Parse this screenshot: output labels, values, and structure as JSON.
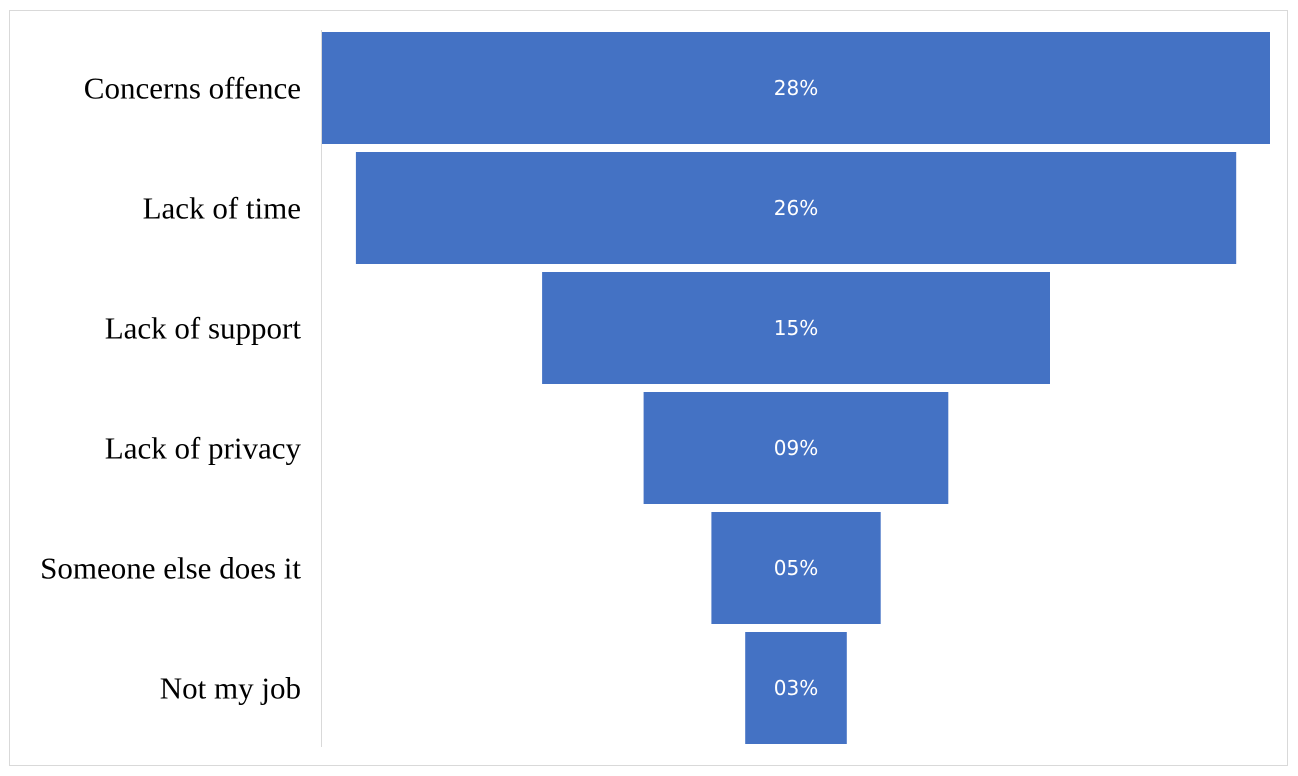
{
  "chart_data": {
    "type": "bar",
    "subtype": "funnel",
    "title": "",
    "xlabel": "",
    "ylabel": "",
    "categories": [
      "Concerns offence",
      "Lack of time",
      "Lack of support",
      "Lack of privacy",
      "Someone else does it",
      "Not my job"
    ],
    "values": [
      28,
      26,
      15,
      9,
      5,
      3
    ],
    "data_labels": [
      "28%",
      "26%",
      "15%",
      "09%",
      "05%",
      "03%"
    ],
    "unit": "%",
    "grid": false,
    "legend": "none",
    "bar_color": "#4472c4",
    "label_color": "#ffffff"
  }
}
